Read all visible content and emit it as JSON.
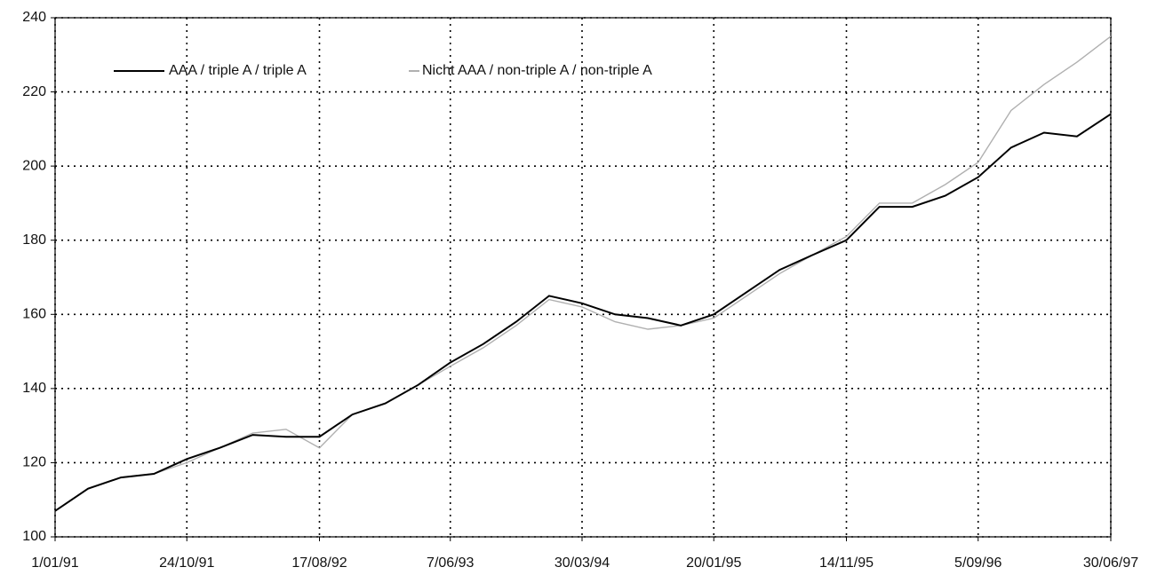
{
  "chart_data": {
    "type": "line",
    "x": [
      "1/01/91",
      "16/03/91",
      "29/05/91",
      "11/08/91",
      "24/10/91",
      "6/01/92",
      "20/03/92",
      "3/06/92",
      "17/08/92",
      "30/10/92",
      "12/01/93",
      "27/03/93",
      "7/06/93",
      "20/08/93",
      "2/11/93",
      "15/01/94",
      "30/03/94",
      "12/06/94",
      "25/08/94",
      "7/11/94",
      "20/01/95",
      "4/04/95",
      "17/06/95",
      "30/08/95",
      "14/11/95",
      "27/01/96",
      "10/04/96",
      "23/06/96",
      "5/09/96",
      "18/11/96",
      "31/01/97",
      "15/04/97",
      "30/06/97"
    ],
    "series": [
      {
        "name": "AAA / triple A / triple A",
        "color": "#000000",
        "values": [
          107,
          113,
          116,
          117,
          121,
          124,
          127.5,
          127,
          127,
          133,
          136,
          141,
          147,
          152,
          158,
          165,
          163,
          160,
          159,
          157,
          160,
          166,
          172,
          176,
          180,
          189,
          189,
          192,
          197,
          205,
          209,
          208,
          214
        ]
      },
      {
        "name": "Nicht AAA / non-triple A / non-triple A",
        "color": "#b0b0b0",
        "values": [
          107,
          113,
          116,
          117,
          120,
          124,
          128,
          129,
          124,
          133,
          136,
          141,
          146,
          151,
          157,
          164,
          162,
          158,
          156,
          157,
          159,
          165,
          171,
          176,
          181,
          190,
          190,
          195,
          201,
          215,
          222,
          228,
          235
        ]
      }
    ],
    "xlim": [
      "1/01/91",
      "30/06/97"
    ],
    "xticks": [
      "1/01/91",
      "24/10/91",
      "17/08/92",
      "7/06/93",
      "30/03/94",
      "20/01/95",
      "14/11/95",
      "5/09/96",
      "30/06/97"
    ],
    "ylim": [
      100,
      240
    ],
    "yticks": [
      100,
      120,
      140,
      160,
      180,
      200,
      220,
      240
    ],
    "grid": true,
    "legend": "upper left"
  }
}
